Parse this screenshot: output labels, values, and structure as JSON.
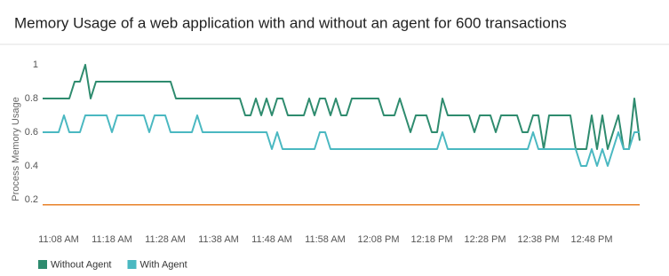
{
  "chart_data": {
    "type": "line",
    "title": "Memory Usage of a web application with and without an agent for 600 transactions",
    "y_label": "Process Memory Usage",
    "categories": [
      null,
      null,
      null,
      "11:08 AM",
      null,
      null,
      null,
      null,
      null,
      null,
      null,
      null,
      null,
      "11:18 AM",
      null,
      null,
      null,
      null,
      null,
      null,
      null,
      null,
      null,
      "11:28 AM",
      null,
      null,
      null,
      null,
      null,
      null,
      null,
      null,
      null,
      "11:38 AM",
      null,
      null,
      null,
      null,
      null,
      null,
      null,
      null,
      null,
      "11:48 AM",
      null,
      null,
      null,
      null,
      null,
      null,
      null,
      null,
      null,
      "11:58 AM",
      null,
      null,
      null,
      null,
      null,
      null,
      null,
      null,
      null,
      "12:08 PM",
      null,
      null,
      null,
      null,
      null,
      null,
      null,
      null,
      null,
      "12:18 PM",
      null,
      null,
      null,
      null,
      null,
      null,
      null,
      null,
      null,
      "12:28 PM",
      null,
      null,
      null,
      null,
      null,
      null,
      null,
      null,
      null,
      "12:38 PM",
      null,
      null,
      null,
      null,
      null,
      null,
      null,
      null,
      null,
      "12:48 PM",
      null,
      null,
      null,
      null,
      null,
      null,
      null,
      null,
      null
    ],
    "series": [
      {
        "name": "Without Agent",
        "color": "#2e8b6e",
        "values": [
          0.8,
          0.8,
          0.8,
          0.8,
          0.8,
          0.8,
          0.9,
          0.9,
          1,
          0.8,
          0.9,
          0.9,
          0.9,
          0.9,
          0.9,
          0.9,
          0.9,
          0.9,
          0.9,
          0.9,
          0.9,
          0.9,
          0.9,
          0.9,
          0.9,
          0.8,
          0.8,
          0.8,
          0.8,
          0.8,
          0.8,
          0.8,
          0.8,
          0.8,
          0.8,
          0.8,
          0.8,
          0.8,
          0.7,
          0.7,
          0.8,
          0.7,
          0.8,
          0.7,
          0.8,
          0.8,
          0.7,
          0.7,
          0.7,
          0.7,
          0.8,
          0.7,
          0.8,
          0.8,
          0.7,
          0.8,
          0.7,
          0.7,
          0.8,
          0.8,
          0.8,
          0.8,
          0.8,
          0.8,
          0.7,
          0.7,
          0.7,
          0.8,
          0.7,
          0.6,
          0.7,
          0.7,
          0.7,
          0.6,
          0.6,
          0.8,
          0.7,
          0.7,
          0.7,
          0.7,
          0.7,
          0.6,
          0.7,
          0.7,
          0.7,
          0.6,
          0.7,
          0.7,
          0.7,
          0.7,
          0.6,
          0.6,
          0.7,
          0.7,
          0.5,
          0.7,
          0.7,
          0.7,
          0.7,
          0.7,
          0.5,
          0.5,
          0.5,
          0.7,
          0.5,
          0.7,
          0.5,
          0.6,
          0.7,
          0.5,
          0.5,
          0.8,
          0.55
        ]
      },
      {
        "name": "With Agent",
        "color": "#4ab8c1",
        "values": [
          0.6,
          0.6,
          0.6,
          0.6,
          0.7,
          0.6,
          0.6,
          0.6,
          0.7,
          0.7,
          0.7,
          0.7,
          0.7,
          0.6,
          0.7,
          0.7,
          0.7,
          0.7,
          0.7,
          0.7,
          0.6,
          0.7,
          0.7,
          0.7,
          0.6,
          0.6,
          0.6,
          0.6,
          0.6,
          0.7,
          0.6,
          0.6,
          0.6,
          0.6,
          0.6,
          0.6,
          0.6,
          0.6,
          0.6,
          0.6,
          0.6,
          0.6,
          0.6,
          0.5,
          0.6,
          0.5,
          0.5,
          0.5,
          0.5,
          0.5,
          0.5,
          0.5,
          0.6,
          0.6,
          0.5,
          0.5,
          0.5,
          0.5,
          0.5,
          0.5,
          0.5,
          0.5,
          0.5,
          0.5,
          0.5,
          0.5,
          0.5,
          0.5,
          0.5,
          0.5,
          0.5,
          0.5,
          0.5,
          0.5,
          0.5,
          0.6,
          0.5,
          0.5,
          0.5,
          0.5,
          0.5,
          0.5,
          0.5,
          0.5,
          0.5,
          0.5,
          0.5,
          0.5,
          0.5,
          0.5,
          0.5,
          0.5,
          0.6,
          0.5,
          0.5,
          0.5,
          0.5,
          0.5,
          0.5,
          0.5,
          0.5,
          0.4,
          0.4,
          0.5,
          0.4,
          0.5,
          0.4,
          0.5,
          0.6,
          0.5,
          0.5,
          0.6,
          0.6
        ]
      }
    ],
    "reference_line": {
      "value": 0.17,
      "color": "#e8822a"
    },
    "ylim": [
      0,
      1
    ],
    "yticks": [
      0.2,
      0.4,
      0.6,
      0.8,
      1
    ],
    "grid": false
  }
}
